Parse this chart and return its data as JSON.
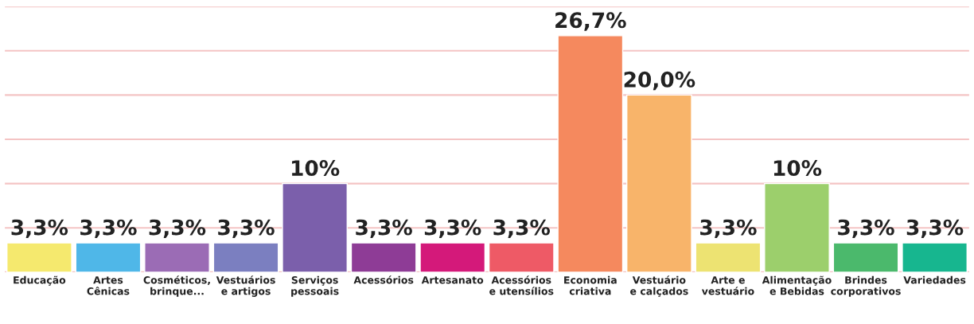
{
  "chart_data": {
    "type": "bar",
    "categories": [
      "Educação",
      "Artes\nCênicas",
      "Cosméticos,\nbrinque...",
      "Vestuários\ne artigos",
      "Serviços\npessoais",
      "Acessórios",
      "Artesanato",
      "Acessórios\ne utensílios",
      "Economia\ncriativa",
      "Vestuário\ne calçados",
      "Arte e\nvestuário",
      "Alimentação\ne Bebidas",
      "Brindes\ncorporativos",
      "Variedades"
    ],
    "values": [
      3.3,
      3.3,
      3.3,
      3.3,
      10,
      3.3,
      3.3,
      3.3,
      26.7,
      20.0,
      3.3,
      10,
      3.3,
      3.3
    ],
    "value_labels": [
      "3,3%",
      "3,3%",
      "3,3%",
      "3,3%",
      "10%",
      "3,3%",
      "3,3%",
      "3,3%",
      "26,7%",
      "20,0%",
      "3,3%",
      "10%",
      "3,3%",
      "3,3%"
    ],
    "colors": [
      "#f5e96e",
      "#4fb7e8",
      "#9b6cb5",
      "#7b7fc0",
      "#7b5fab",
      "#8e3c96",
      "#d4197a",
      "#ee5a66",
      "#f5895e",
      "#f8b46a",
      "#ede372",
      "#9ccf6c",
      "#4bb96c",
      "#17b68f"
    ],
    "ylim": [
      0,
      30
    ],
    "yticks": [
      {
        "value": 0,
        "label": null
      },
      {
        "value": 5,
        "label": null
      },
      {
        "value": 10,
        "label": null
      },
      {
        "value": 15,
        "label": null
      },
      {
        "value": 20,
        "label": null
      },
      {
        "value": 25,
        "label": null
      },
      {
        "value": 30,
        "label": null
      }
    ],
    "grid": "y",
    "tick_labels": "x"
  }
}
